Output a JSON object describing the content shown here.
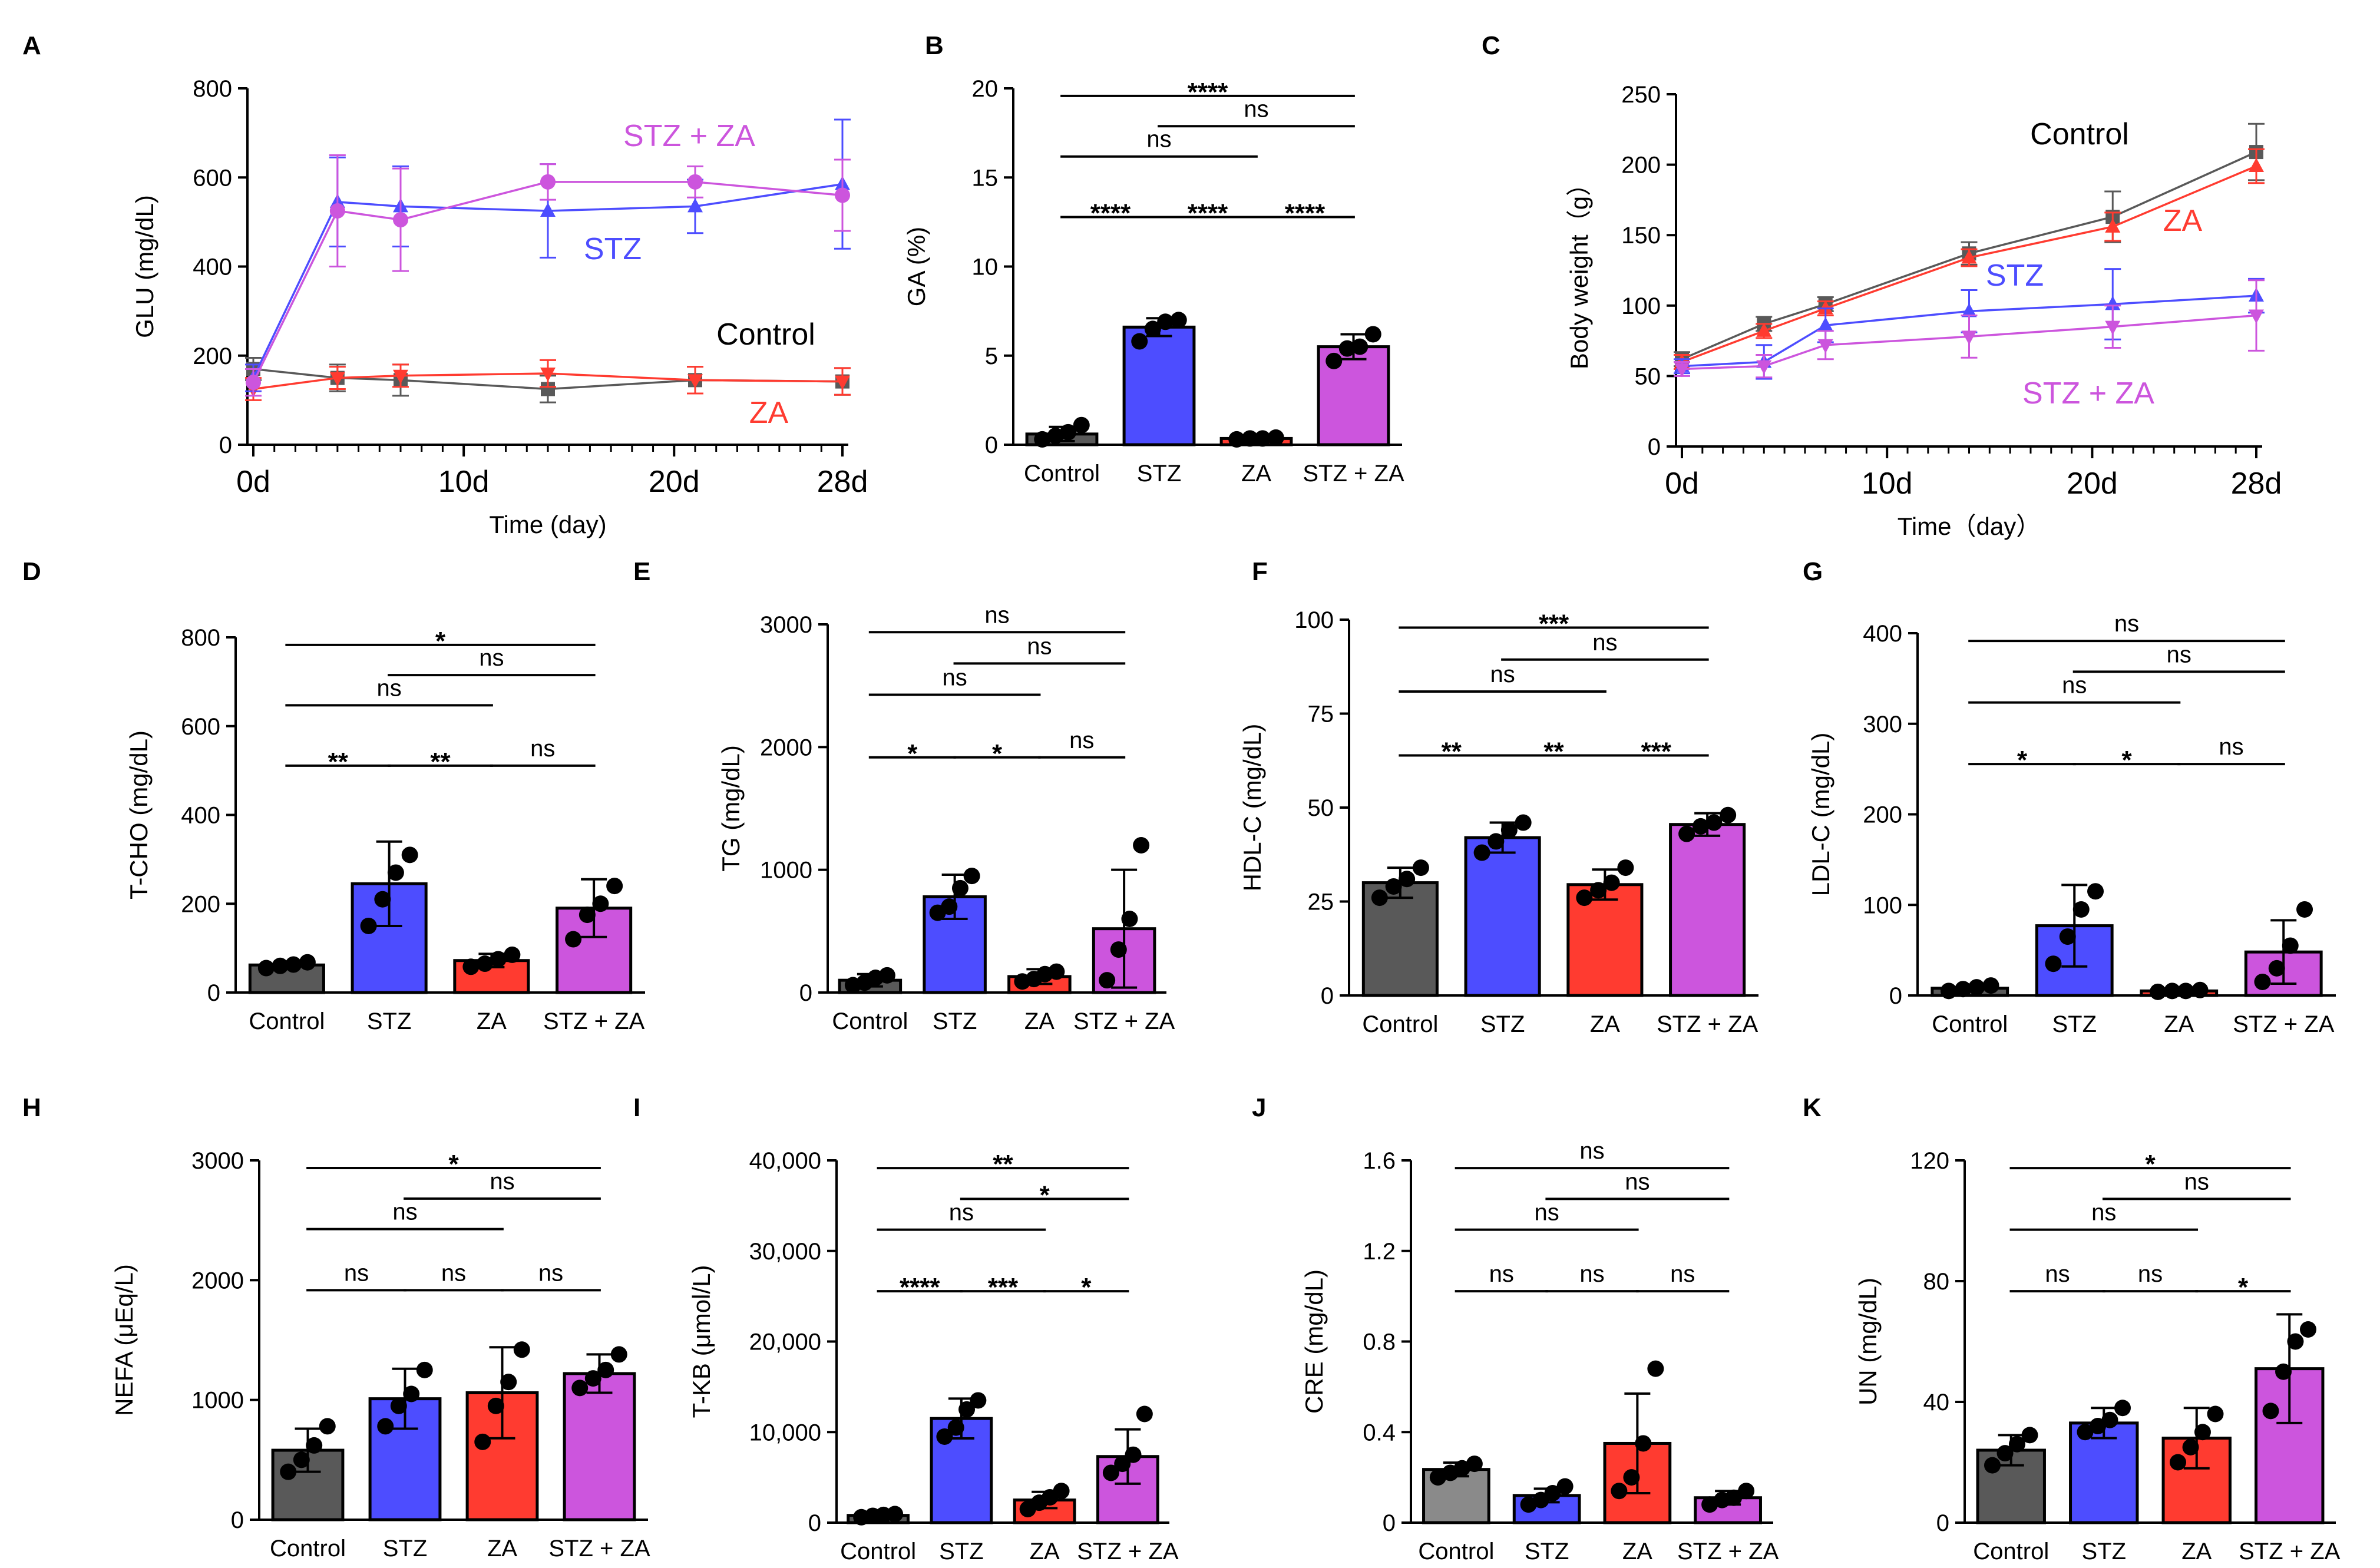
{
  "groups": [
    "Control",
    "STZ",
    "ZA",
    "STZ + ZA"
  ],
  "colors": {
    "Control": "#595959",
    "STZ": "#4d4dff",
    "ZA": "#ff3b30",
    "STZ + ZA": "#cc55dd",
    "ControlLight": "#8a8a8a"
  },
  "chart_data": [
    {
      "panel": "A",
      "type": "line",
      "ylabel": "GLU (mg/dL)",
      "xlabel": "Time (day)",
      "xticks": [
        "0d",
        "10d",
        "20d",
        "28d"
      ],
      "xtick_values": [
        0,
        10,
        20,
        28
      ],
      "yticks": [
        0,
        200,
        400,
        600,
        800
      ],
      "ylim": [
        0,
        800
      ],
      "xlim": [
        0,
        28
      ],
      "series": [
        {
          "name": "Control",
          "x": [
            0,
            4,
            7,
            14,
            21,
            28
          ],
          "values": [
            170,
            150,
            145,
            125,
            145,
            142
          ],
          "err": [
            25,
            30,
            35,
            30,
            30,
            30
          ],
          "marker": "square"
        },
        {
          "name": "ZA",
          "x": [
            0,
            4,
            7,
            14,
            21,
            28
          ],
          "values": [
            125,
            150,
            155,
            160,
            145,
            142
          ],
          "err": [
            25,
            25,
            25,
            30,
            30,
            30
          ],
          "marker": "tri-down"
        },
        {
          "name": "STZ",
          "x": [
            0,
            4,
            7,
            14,
            21,
            28
          ],
          "values": [
            150,
            545,
            535,
            525,
            535,
            585
          ],
          "err": [
            30,
            100,
            90,
            105,
            60,
            145
          ],
          "marker": "tri-up"
        },
        {
          "name": "STZ + ZA",
          "x": [
            0,
            4,
            7,
            14,
            21,
            28
          ],
          "values": [
            140,
            525,
            505,
            590,
            590,
            560
          ],
          "err": [
            30,
            125,
            115,
            40,
            35,
            80
          ],
          "marker": "circle"
        }
      ],
      "labels": [
        {
          "text": "STZ + ZA",
          "series": "STZ + ZA"
        },
        {
          "text": "STZ",
          "series": "STZ"
        },
        {
          "text": "Control",
          "series": "Control"
        },
        {
          "text": "ZA",
          "series": "ZA"
        }
      ]
    },
    {
      "panel": "B",
      "type": "bar",
      "ylabel": "GA (%)",
      "yticks": [
        0,
        5,
        10,
        15,
        20
      ],
      "ylim": [
        0,
        20
      ],
      "values": [
        0.6,
        6.6,
        0.35,
        5.5
      ],
      "err": [
        0.4,
        0.5,
        0.1,
        0.7
      ],
      "points": [
        [
          0.3,
          0.5,
          0.7,
          1.1
        ],
        [
          5.8,
          6.5,
          6.9,
          7.0
        ],
        [
          0.3,
          0.35,
          0.35,
          0.4
        ],
        [
          4.7,
          5.4,
          5.5,
          6.2
        ]
      ],
      "sig": [
        {
          "a": 0,
          "b": 1,
          "label": "****"
        },
        {
          "a": 2,
          "b": 3,
          "label": "****"
        },
        {
          "a": 1,
          "b": 2,
          "label": "****"
        },
        {
          "a": 0,
          "b": 2,
          "label": "ns"
        },
        {
          "a": 1,
          "b": 3,
          "label": "ns"
        },
        {
          "a": 0,
          "b": 3,
          "label": "****"
        }
      ]
    },
    {
      "panel": "C",
      "type": "line",
      "ylabel": "Body weight（g）",
      "xlabel": "Time（day）",
      "xticks": [
        "0d",
        "10d",
        "20d",
        "28d"
      ],
      "xtick_values": [
        0,
        10,
        20,
        28
      ],
      "yticks": [
        0,
        50,
        100,
        150,
        200,
        250
      ],
      "ylim": [
        0,
        250
      ],
      "xlim": [
        0,
        28
      ],
      "series": [
        {
          "name": "Control",
          "x": [
            0,
            4,
            7,
            14,
            21,
            28
          ],
          "values": [
            62,
            87,
            101,
            137,
            163,
            209
          ],
          "err": [
            5,
            5,
            5,
            8,
            18,
            20
          ],
          "marker": "square"
        },
        {
          "name": "ZA",
          "x": [
            0,
            4,
            7,
            14,
            21,
            28
          ],
          "values": [
            60,
            82,
            98,
            134,
            156,
            199
          ],
          "err": [
            5,
            5,
            5,
            6,
            10,
            12
          ],
          "marker": "tri-up"
        },
        {
          "name": "STZ",
          "x": [
            0,
            4,
            7,
            14,
            21,
            28
          ],
          "values": [
            57,
            60,
            86,
            96,
            101,
            107
          ],
          "err": [
            5,
            12,
            12,
            15,
            25,
            12
          ],
          "marker": "tri-up"
        },
        {
          "name": "STZ + ZA",
          "x": [
            0,
            4,
            7,
            14,
            21,
            28
          ],
          "values": [
            55,
            57,
            72,
            78,
            85,
            93
          ],
          "err": [
            5,
            8,
            10,
            15,
            15,
            25
          ],
          "marker": "tri-down"
        }
      ],
      "labels": [
        {
          "text": "Control",
          "series": "Control"
        },
        {
          "text": "ZA",
          "series": "ZA"
        },
        {
          "text": "STZ",
          "series": "STZ"
        },
        {
          "text": "STZ + ZA",
          "series": "STZ + ZA"
        }
      ]
    },
    {
      "panel": "D",
      "type": "bar",
      "ylabel": "T-CHO (mg/dL)",
      "yticks": [
        0,
        200,
        400,
        600,
        800
      ],
      "ylim": [
        0,
        800
      ],
      "values": [
        62,
        245,
        72,
        190
      ],
      "err": [
        8,
        95,
        15,
        65
      ],
      "points": [
        [
          55,
          60,
          63,
          68
        ],
        [
          150,
          210,
          270,
          310
        ],
        [
          58,
          65,
          75,
          85
        ],
        [
          120,
          175,
          200,
          240
        ]
      ],
      "sig": [
        {
          "a": 0,
          "b": 1,
          "label": "**"
        },
        {
          "a": 1,
          "b": 2,
          "label": "**"
        },
        {
          "a": 2,
          "b": 3,
          "label": "ns"
        },
        {
          "a": 0,
          "b": 2,
          "label": "ns"
        },
        {
          "a": 1,
          "b": 3,
          "label": "ns"
        },
        {
          "a": 0,
          "b": 3,
          "label": "*"
        }
      ]
    },
    {
      "panel": "E",
      "type": "bar",
      "ylabel": "TG (mg/dL)",
      "yticks": [
        0,
        1000,
        2000,
        3000
      ],
      "ylim": [
        0,
        3000
      ],
      "values": [
        100,
        780,
        130,
        520
      ],
      "err": [
        50,
        180,
        60,
        480
      ],
      "points": [
        [
          60,
          80,
          120,
          140
        ],
        [
          650,
          700,
          850,
          950
        ],
        [
          90,
          110,
          150,
          170
        ],
        [
          100,
          350,
          600,
          1200
        ]
      ],
      "sig": [
        {
          "a": 0,
          "b": 1,
          "label": "*"
        },
        {
          "a": 1,
          "b": 2,
          "label": "*"
        },
        {
          "a": 2,
          "b": 3,
          "label": "ns"
        },
        {
          "a": 0,
          "b": 2,
          "label": "ns"
        },
        {
          "a": 1,
          "b": 3,
          "label": "ns"
        },
        {
          "a": 0,
          "b": 3,
          "label": "ns"
        }
      ]
    },
    {
      "panel": "F",
      "type": "bar",
      "ylabel": "HDL-C (mg/dL)",
      "yticks": [
        0,
        25,
        50,
        75,
        100
      ],
      "ylim": [
        0,
        100
      ],
      "values": [
        30,
        42,
        29.5,
        45.5
      ],
      "err": [
        4,
        4,
        4,
        3
      ],
      "points": [
        [
          26,
          29,
          31,
          34
        ],
        [
          38,
          41,
          44,
          46
        ],
        [
          26,
          28,
          30,
          34
        ],
        [
          43,
          45,
          46,
          48
        ]
      ],
      "sig": [
        {
          "a": 0,
          "b": 1,
          "label": "**"
        },
        {
          "a": 1,
          "b": 2,
          "label": "**"
        },
        {
          "a": 2,
          "b": 3,
          "label": "***"
        },
        {
          "a": 0,
          "b": 2,
          "label": "ns"
        },
        {
          "a": 1,
          "b": 3,
          "label": "ns"
        },
        {
          "a": 0,
          "b": 3,
          "label": "***"
        }
      ]
    },
    {
      "panel": "G",
      "type": "bar",
      "ylabel": "LDL-C (mg/dL)",
      "yticks": [
        0,
        100,
        200,
        300,
        400
      ],
      "ylim": [
        0,
        400
      ],
      "values": [
        8,
        77,
        5,
        48
      ],
      "err": [
        3,
        45,
        2,
        35
      ],
      "points": [
        [
          5,
          7,
          9,
          11
        ],
        [
          35,
          65,
          95,
          115
        ],
        [
          4,
          5,
          5,
          6
        ],
        [
          15,
          30,
          55,
          95
        ]
      ],
      "sig": [
        {
          "a": 0,
          "b": 1,
          "label": "*"
        },
        {
          "a": 1,
          "b": 2,
          "label": "*"
        },
        {
          "a": 2,
          "b": 3,
          "label": "ns"
        },
        {
          "a": 1,
          "b": 3,
          "label": "ns"
        },
        {
          "a": 0,
          "b": 2,
          "label": "ns"
        },
        {
          "a": 0,
          "b": 3,
          "label": "ns"
        }
      ]
    },
    {
      "panel": "H",
      "type": "bar",
      "ylabel": "NEFA (μEq/L)",
      "yticks": [
        0,
        1000,
        2000,
        3000
      ],
      "ylim": [
        0,
        3000
      ],
      "values": [
        580,
        1010,
        1060,
        1220
      ],
      "err": [
        180,
        250,
        380,
        160
      ],
      "points": [
        [
          400,
          500,
          620,
          780
        ],
        [
          780,
          950,
          1050,
          1250
        ],
        [
          650,
          950,
          1150,
          1420
        ],
        [
          1100,
          1180,
          1250,
          1380
        ]
      ],
      "sig": [
        {
          "a": 0,
          "b": 1,
          "label": "ns"
        },
        {
          "a": 1,
          "b": 2,
          "label": "ns"
        },
        {
          "a": 2,
          "b": 3,
          "label": "ns"
        },
        {
          "a": 0,
          "b": 2,
          "label": "ns"
        },
        {
          "a": 1,
          "b": 3,
          "label": "ns"
        },
        {
          "a": 0,
          "b": 3,
          "label": "*"
        }
      ]
    },
    {
      "panel": "I",
      "type": "bar",
      "ylabel": "T-KB (μmol/L)",
      "yticks": [
        0,
        10000,
        20000,
        30000,
        40000
      ],
      "yticklabels": [
        "0",
        "10,000",
        "20,000",
        "30,000",
        "40,000"
      ],
      "ylim": [
        0,
        40000
      ],
      "values": [
        800,
        11500,
        2500,
        7300
      ],
      "err": [
        200,
        2200,
        900,
        3000
      ],
      "points": [
        [
          600,
          750,
          850,
          950
        ],
        [
          9500,
          10500,
          12500,
          13500
        ],
        [
          1500,
          2200,
          2800,
          3500
        ],
        [
          5500,
          6500,
          7500,
          12000
        ]
      ],
      "sig": [
        {
          "a": 0,
          "b": 1,
          "label": "****"
        },
        {
          "a": 1,
          "b": 2,
          "label": "***"
        },
        {
          "a": 2,
          "b": 3,
          "label": "*"
        },
        {
          "a": 1,
          "b": 3,
          "label": "*"
        },
        {
          "a": 0,
          "b": 2,
          "label": "ns"
        },
        {
          "a": 0,
          "b": 3,
          "label": "**"
        }
      ]
    },
    {
      "panel": "J",
      "type": "bar",
      "ylabel": "CRE (mg/dL)",
      "yticks": [
        0,
        0.4,
        0.8,
        1.2,
        1.6
      ],
      "yticklabels": [
        "0",
        "0.4",
        "0.8",
        "1.2",
        "1.6"
      ],
      "ylim": [
        0,
        1.6
      ],
      "values": [
        0.235,
        0.12,
        0.35,
        0.11
      ],
      "err": [
        0.03,
        0.03,
        0.22,
        0.03
      ],
      "points": [
        [
          0.2,
          0.22,
          0.24,
          0.26
        ],
        [
          0.08,
          0.1,
          0.13,
          0.16
        ],
        [
          0.14,
          0.2,
          0.35,
          0.68
        ],
        [
          0.08,
          0.1,
          0.11,
          0.14
        ]
      ],
      "sig": [
        {
          "a": 0,
          "b": 1,
          "label": "ns"
        },
        {
          "a": 1,
          "b": 2,
          "label": "ns"
        },
        {
          "a": 2,
          "b": 3,
          "label": "ns"
        },
        {
          "a": 0,
          "b": 2,
          "label": "ns"
        },
        {
          "a": 1,
          "b": 3,
          "label": "ns"
        },
        {
          "a": 0,
          "b": 3,
          "label": "ns"
        }
      ]
    },
    {
      "panel": "K",
      "type": "bar",
      "ylabel": "UN (mg/dL)",
      "yticks": [
        0,
        40,
        80,
        120
      ],
      "ylim": [
        0,
        120
      ],
      "values": [
        24,
        33,
        28,
        51
      ],
      "err": [
        5,
        5,
        10,
        18
      ],
      "points": [
        [
          19,
          23,
          26,
          29
        ],
        [
          30,
          32,
          34,
          38
        ],
        [
          20,
          25,
          30,
          36
        ],
        [
          37,
          50,
          60,
          64
        ]
      ],
      "sig": [
        {
          "a": 0,
          "b": 1,
          "label": "ns"
        },
        {
          "a": 1,
          "b": 2,
          "label": "ns"
        },
        {
          "a": 2,
          "b": 3,
          "label": "*"
        },
        {
          "a": 0,
          "b": 2,
          "label": "ns"
        },
        {
          "a": 1,
          "b": 3,
          "label": "ns"
        },
        {
          "a": 0,
          "b": 3,
          "label": "*"
        }
      ]
    }
  ]
}
